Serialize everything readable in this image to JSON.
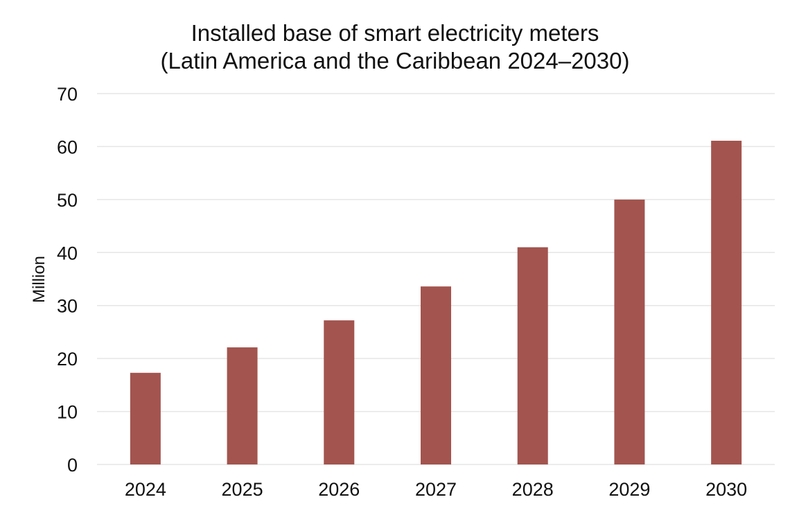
{
  "chart_data": {
    "type": "bar",
    "title": "Installed base of smart electricity meters",
    "subtitle": "(Latin America and the Caribbean 2024–2030)",
    "xlabel": "",
    "ylabel": "Million",
    "categories": [
      "2024",
      "2025",
      "2026",
      "2027",
      "2028",
      "2029",
      "2030"
    ],
    "values": [
      17.3,
      22.1,
      27.2,
      33.6,
      41.0,
      50.0,
      61.1
    ],
    "ylim": [
      0,
      70
    ],
    "yticks": [
      0,
      10,
      20,
      30,
      40,
      50,
      60,
      70
    ],
    "grid": true,
    "bar_color": "#a3544e",
    "grid_color": "#e6e6e6"
  }
}
